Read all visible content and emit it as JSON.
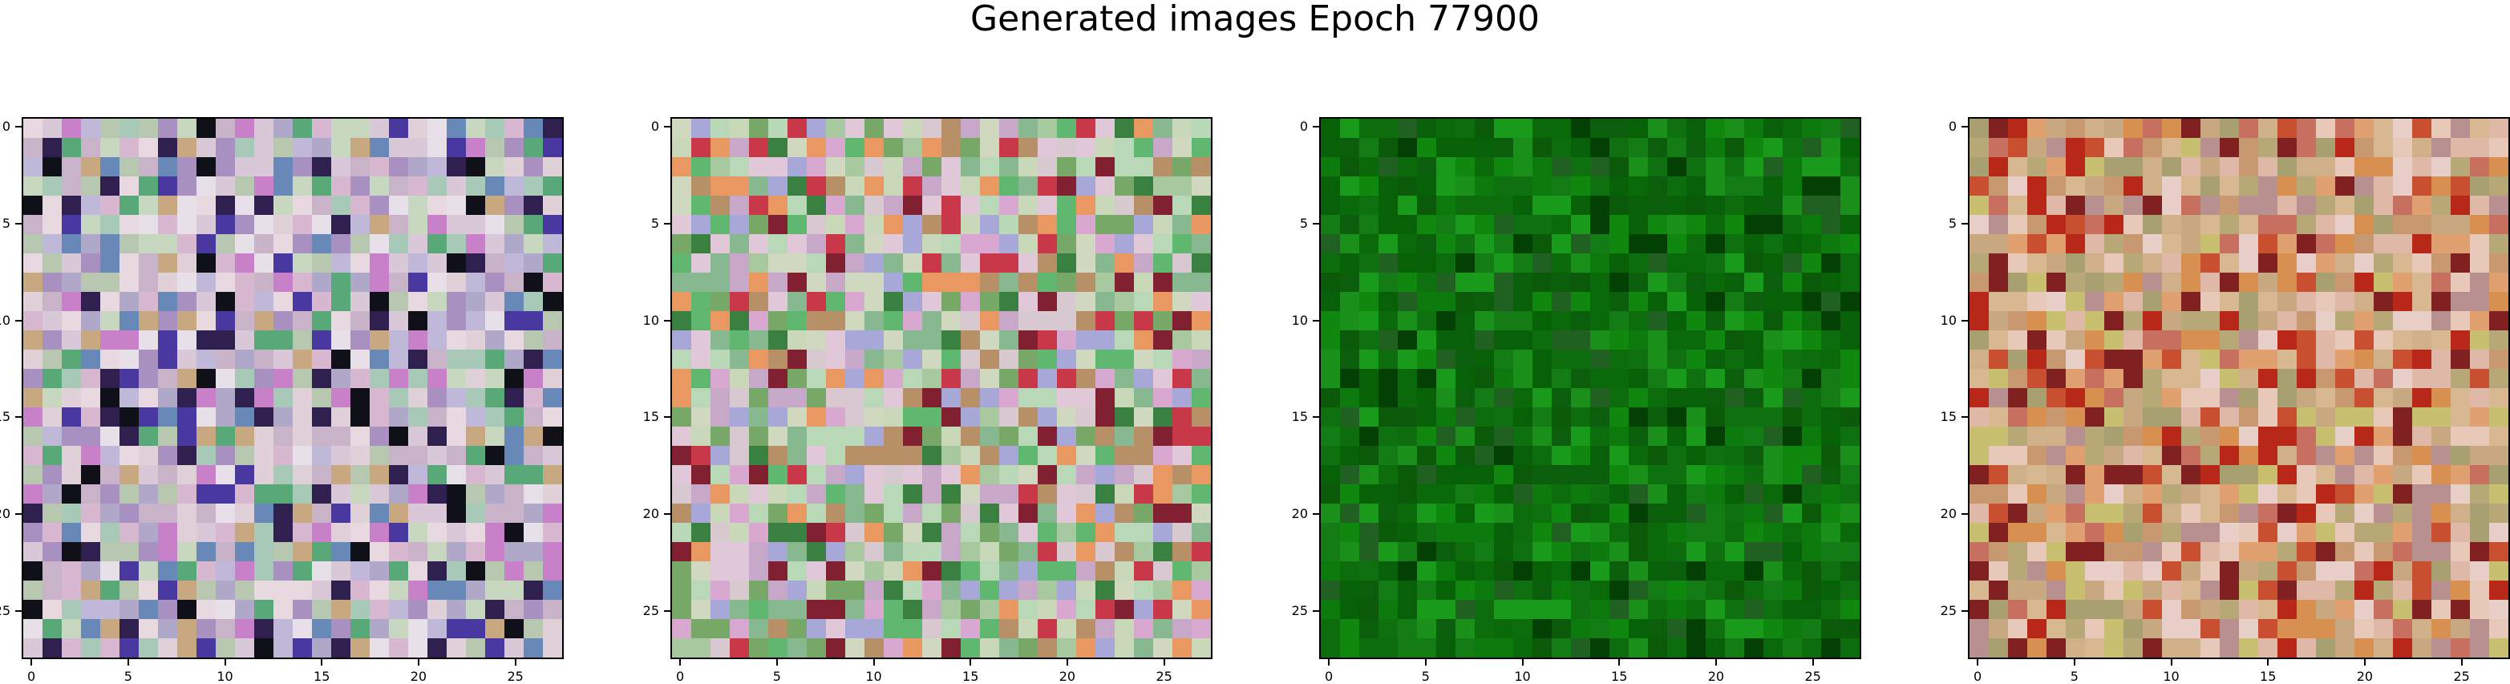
{
  "figure": {
    "title": "Generated images Epoch 77900"
  },
  "chart_data": [
    {
      "type": "heatmap",
      "palette": "pastel",
      "grid_size": 28,
      "xticks": [
        "0",
        "5",
        "10",
        "15",
        "20",
        "25"
      ],
      "yticks": [
        "0",
        "5",
        "10",
        "15",
        "20",
        "25"
      ]
    },
    {
      "type": "heatmap",
      "palette": "pastel-green",
      "grid_size": 28,
      "xticks": [
        "0",
        "5",
        "10",
        "15",
        "20",
        "25"
      ],
      "yticks": [
        "0",
        "5",
        "10",
        "15",
        "20",
        "25"
      ]
    },
    {
      "type": "heatmap",
      "palette": "green",
      "grid_size": 28,
      "xticks": [
        "0",
        "5",
        "10",
        "15",
        "20",
        "25"
      ],
      "yticks": [
        "0",
        "5",
        "10",
        "15",
        "20",
        "25"
      ]
    },
    {
      "type": "heatmap",
      "palette": "warm",
      "grid_size": 28,
      "xticks": [
        "0",
        "5",
        "10",
        "15",
        "20",
        "25"
      ],
      "yticks": [
        "0",
        "5",
        "10",
        "15",
        "20",
        "25"
      ]
    }
  ]
}
